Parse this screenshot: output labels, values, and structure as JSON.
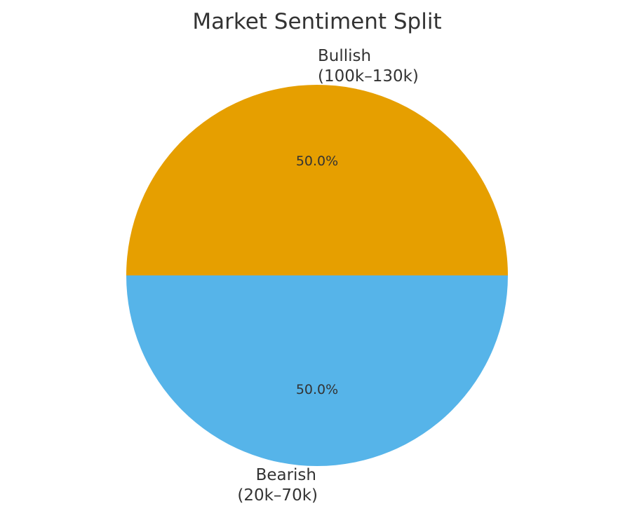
{
  "chart_data": {
    "type": "pie",
    "title": "Market Sentiment Split",
    "slices": [
      {
        "name": "Bullish",
        "range": "(100k–130k)",
        "value": 50.0,
        "pct_label": "50.0%",
        "color": "#E69F00"
      },
      {
        "name": "Bearish",
        "range": "(20k–70k)",
        "value": 50.0,
        "pct_label": "50.0%",
        "color": "#56B4E9"
      }
    ],
    "start_angle_deg": 0,
    "direction": "counterclockwise",
    "legend": "none"
  }
}
